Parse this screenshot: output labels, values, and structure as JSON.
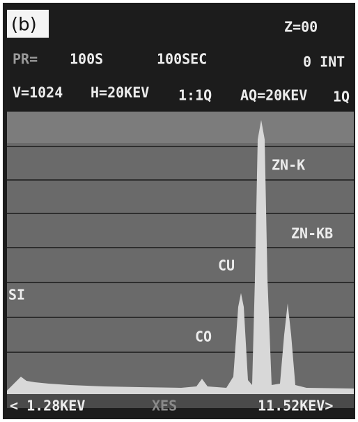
{
  "panel_label": "(b)",
  "header": {
    "z": "Z=00",
    "pr_label": "PR=",
    "preset": "100S",
    "time": "100SEC",
    "integral": "0 INT",
    "vertical": "V=1024",
    "horizontal": "H=20KEV",
    "ratio": "1:1Q",
    "acquire": "AQ=20KEV",
    "acquire_unit": "1Q"
  },
  "peaks": {
    "zn_k": "ZN-K",
    "zn_kb": "ZN-KB",
    "cu": "CU",
    "si": "SI",
    "co": "CO"
  },
  "footer": {
    "left": "< 1.28KEV",
    "center": "XES",
    "right": "11.52KEV>"
  }
}
